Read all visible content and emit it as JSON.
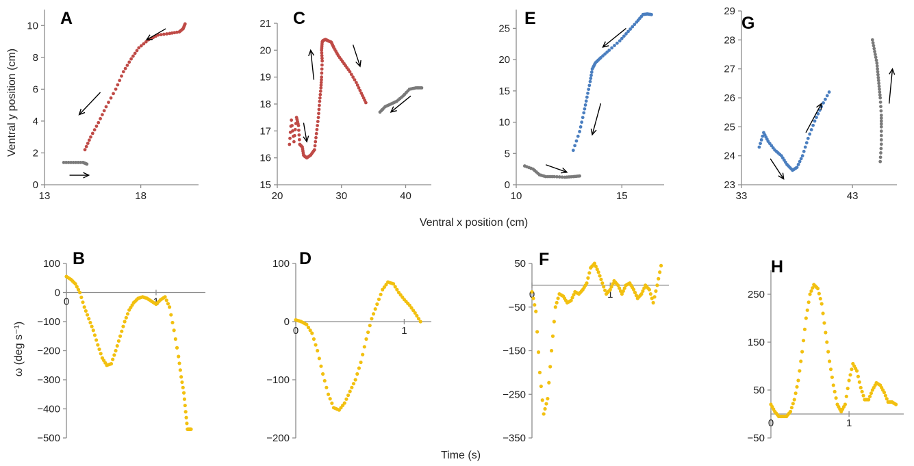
{
  "labels": {
    "xlabel_top": "Ventral x position (cm)",
    "ylabel_top": "Ventral y position (cm)",
    "xlabel_bottom": "Time (s)",
    "ylabel_bottom": "ω (deg s⁻¹)"
  },
  "colors": {
    "red": "#bf4a46",
    "gray": "#7a7a7a",
    "blue": "#4a7ebf",
    "yellow": "#f2c010"
  },
  "chart_data": [
    {
      "panel": "A",
      "type": "scatter",
      "xlim": [
        13,
        21
      ],
      "ylim": [
        0,
        11
      ],
      "xticks": [
        13,
        18
      ],
      "yticks": [
        0,
        2,
        4,
        6,
        8,
        10
      ],
      "series": [
        {
          "color": "gray",
          "x": [
            14.0,
            14.5,
            15.0,
            15.2
          ],
          "y": [
            1.4,
            1.4,
            1.4,
            1.3
          ]
        },
        {
          "color": "red",
          "x": [
            15.1,
            15.4,
            15.8,
            16.2,
            16.7,
            17.1,
            17.5,
            17.9,
            18.4,
            18.9,
            19.5,
            20.0,
            20.2,
            20.3
          ],
          "y": [
            2.2,
            3.0,
            3.9,
            4.9,
            6.0,
            7.1,
            7.9,
            8.6,
            9.1,
            9.4,
            9.5,
            9.6,
            9.8,
            10.1
          ]
        }
      ],
      "arrows": [
        [
          19.3,
          9.8,
          18.3,
          9.1
        ],
        [
          15.9,
          5.8,
          14.8,
          4.4
        ],
        [
          14.3,
          0.6,
          15.3,
          0.6
        ]
      ]
    },
    {
      "panel": "C",
      "type": "scatter",
      "xlim": [
        20,
        44
      ],
      "ylim": [
        15,
        21
      ],
      "xticks": [
        20,
        30,
        40
      ],
      "yticks": [
        15,
        16,
        17,
        18,
        19,
        20,
        21
      ],
      "series": [
        {
          "color": "red",
          "x": [
            21.9,
            22.2,
            22.6,
            23.0,
            23.3,
            23.5,
            23.9,
            24.1,
            24.3,
            24.6,
            25.2,
            25.8,
            26.1,
            26.4,
            26.6,
            26.8,
            26.9,
            27.0,
            26.9,
            27.0,
            27.1,
            27.5,
            27.9,
            28.4,
            28.8,
            29.5,
            30.4,
            31.3,
            32.3,
            33.1,
            33.8
          ],
          "y": [
            16.5,
            17.4,
            16.6,
            17.5,
            17.2,
            16.5,
            16.4,
            16.1,
            16.05,
            16.0,
            16.1,
            16.3,
            16.9,
            17.5,
            18.1,
            18.6,
            19.0,
            19.6,
            20.0,
            20.3,
            20.35,
            20.4,
            20.35,
            20.3,
            20.1,
            19.8,
            19.5,
            19.2,
            18.8,
            18.4,
            18.05
          ]
        },
        {
          "color": "gray",
          "x": [
            36.0,
            36.8,
            37.7,
            38.6,
            39.6,
            40.6,
            41.6,
            42.5
          ],
          "y": [
            17.7,
            17.9,
            18.0,
            18.1,
            18.3,
            18.55,
            18.6,
            18.6
          ]
        }
      ],
      "arrows": [
        [
          25.7,
          18.9,
          25.2,
          20.0
        ],
        [
          24.1,
          17.3,
          24.6,
          16.6
        ],
        [
          31.8,
          20.2,
          32.9,
          19.4
        ],
        [
          40.8,
          18.3,
          37.7,
          17.7
        ]
      ]
    },
    {
      "panel": "E",
      "type": "scatter",
      "xlim": [
        10,
        17
      ],
      "ylim": [
        0,
        28
      ],
      "xticks": [
        10,
        15
      ],
      "yticks": [
        0,
        5,
        10,
        15,
        20,
        25
      ],
      "series": [
        {
          "color": "gray",
          "x": [
            10.4,
            10.8,
            11.1,
            11.4,
            11.8,
            12.3,
            12.7,
            13.0
          ],
          "y": [
            3.0,
            2.5,
            1.6,
            1.3,
            1.3,
            1.2,
            1.3,
            1.4
          ]
        },
        {
          "color": "blue",
          "x": [
            12.7,
            13.0,
            13.2,
            13.35,
            13.5,
            13.6,
            13.75,
            14.0,
            14.4,
            14.9,
            15.3,
            15.7,
            16.0,
            16.2,
            16.4
          ],
          "y": [
            5.5,
            8.5,
            11.5,
            14.0,
            16.5,
            18.5,
            19.5,
            20.3,
            21.5,
            23.0,
            24.5,
            26.0,
            27.2,
            27.3,
            27.2
          ]
        }
      ],
      "arrows": [
        [
          14.0,
          13.0,
          13.6,
          8.0
        ],
        [
          11.4,
          3.2,
          12.4,
          2.0
        ],
        [
          15.2,
          25.0,
          14.1,
          22.0
        ]
      ]
    },
    {
      "panel": "G",
      "type": "scatter",
      "xlim": [
        33,
        47
      ],
      "ylim": [
        23,
        29
      ],
      "xticks": [
        33,
        43
      ],
      "yticks": [
        23,
        24,
        25,
        26,
        27,
        28,
        29
      ],
      "series": [
        {
          "color": "blue",
          "x": [
            34.6,
            35.0,
            35.4,
            36.0,
            36.6,
            37.1,
            37.6,
            38.0,
            38.5,
            39.0,
            39.6,
            40.2,
            40.9
          ],
          "y": [
            24.3,
            24.8,
            24.5,
            24.2,
            24.0,
            23.7,
            23.5,
            23.6,
            24.0,
            24.6,
            25.2,
            25.7,
            26.2
          ]
        },
        {
          "color": "gray",
          "x": [
            44.8,
            45.0,
            45.2,
            45.3,
            45.4,
            45.5,
            45.6,
            45.6,
            45.6,
            45.5
          ],
          "y": [
            28.0,
            27.6,
            27.2,
            26.8,
            26.4,
            26.0,
            25.4,
            25.0,
            24.4,
            23.8
          ]
        }
      ],
      "arrows": [
        [
          35.6,
          23.9,
          36.8,
          23.2
        ],
        [
          38.8,
          24.8,
          40.2,
          25.8
        ],
        [
          46.3,
          25.8,
          46.6,
          27.0
        ]
      ]
    },
    {
      "panel": "B",
      "type": "scatter",
      "xlim": [
        0,
        1.55
      ],
      "ylim": [
        -500,
        100
      ],
      "xticks": [
        0,
        1
      ],
      "yticks": [
        100,
        0,
        -100,
        -200,
        -300,
        -400,
        -500
      ],
      "series": [
        {
          "color": "yellow",
          "x": [
            0,
            0.05,
            0.1,
            0.15,
            0.2,
            0.25,
            0.3,
            0.35,
            0.4,
            0.45,
            0.5,
            0.55,
            0.6,
            0.65,
            0.7,
            0.75,
            0.8,
            0.85,
            0.9,
            0.95,
            1.0,
            1.05,
            1.1,
            1.15,
            1.2,
            1.25,
            1.28,
            1.31,
            1.33,
            1.35,
            1.36,
            1.37,
            1.38,
            1.39
          ],
          "y": [
            55,
            45,
            30,
            0,
            -50,
            -90,
            -130,
            -180,
            -225,
            -250,
            -245,
            -200,
            -150,
            -100,
            -60,
            -35,
            -20,
            -15,
            -20,
            -30,
            -40,
            -25,
            -15,
            -50,
            -130,
            -220,
            -290,
            -345,
            -410,
            -470,
            -470,
            -470,
            -470,
            -470
          ]
        }
      ]
    },
    {
      "panel": "D",
      "type": "scatter",
      "xlim": [
        0,
        1.25
      ],
      "ylim": [
        -200,
        100
      ],
      "xticks": [
        0,
        1
      ],
      "yticks": [
        100,
        0,
        -100,
        -200
      ],
      "series": [
        {
          "color": "yellow",
          "x": [
            0,
            0.05,
            0.1,
            0.15,
            0.2,
            0.25,
            0.3,
            0.35,
            0.4,
            0.45,
            0.5,
            0.55,
            0.6,
            0.65,
            0.7,
            0.75,
            0.8,
            0.85,
            0.9,
            0.95,
            1.0,
            1.05,
            1.1,
            1.15
          ],
          "y": [
            3,
            0,
            -5,
            -20,
            -50,
            -90,
            -125,
            -148,
            -152,
            -140,
            -120,
            -100,
            -70,
            -30,
            5,
            30,
            55,
            68,
            65,
            50,
            38,
            28,
            15,
            0
          ]
        }
      ]
    },
    {
      "panel": "F",
      "type": "scatter",
      "xlim": [
        0,
        1.75
      ],
      "ylim": [
        -350,
        50
      ],
      "xticks": [
        0,
        1
      ],
      "yticks": [
        50,
        -50,
        -150,
        -250,
        -350
      ],
      "series": [
        {
          "color": "yellow",
          "x": [
            0,
            0.05,
            0.1,
            0.15,
            0.2,
            0.25,
            0.3,
            0.35,
            0.4,
            0.45,
            0.5,
            0.55,
            0.6,
            0.65,
            0.7,
            0.75,
            0.8,
            0.85,
            0.9,
            0.95,
            1.0,
            1.05,
            1.1,
            1.15,
            1.2,
            1.25,
            1.3,
            1.35,
            1.4,
            1.45,
            1.5,
            1.55,
            1.6,
            1.65
          ],
          "y": [
            -15,
            -60,
            -200,
            -295,
            -260,
            -150,
            -50,
            -20,
            -25,
            -40,
            -35,
            -15,
            -20,
            -10,
            5,
            40,
            50,
            30,
            5,
            -20,
            -10,
            10,
            0,
            -20,
            0,
            5,
            -10,
            -30,
            -20,
            0,
            -10,
            -40,
            0,
            45
          ]
        }
      ]
    },
    {
      "panel": "H",
      "type": "scatter",
      "xlim": [
        0,
        1.7
      ],
      "ylim": [
        -50,
        300
      ],
      "xticks": [
        0,
        1
      ],
      "yticks": [
        250,
        150,
        50,
        -50
      ],
      "series": [
        {
          "color": "yellow",
          "x": [
            0,
            0.05,
            0.1,
            0.15,
            0.2,
            0.25,
            0.3,
            0.35,
            0.4,
            0.45,
            0.5,
            0.55,
            0.6,
            0.65,
            0.7,
            0.75,
            0.8,
            0.85,
            0.9,
            0.95,
            1.0,
            1.05,
            1.1,
            1.15,
            1.2,
            1.25,
            1.3,
            1.35,
            1.4,
            1.45,
            1.5,
            1.55,
            1.6
          ],
          "y": [
            20,
            5,
            -5,
            -5,
            -5,
            5,
            30,
            70,
            130,
            200,
            250,
            270,
            262,
            230,
            170,
            110,
            60,
            20,
            5,
            20,
            70,
            105,
            90,
            55,
            30,
            30,
            50,
            65,
            60,
            45,
            25,
            25,
            20
          ]
        }
      ]
    }
  ]
}
